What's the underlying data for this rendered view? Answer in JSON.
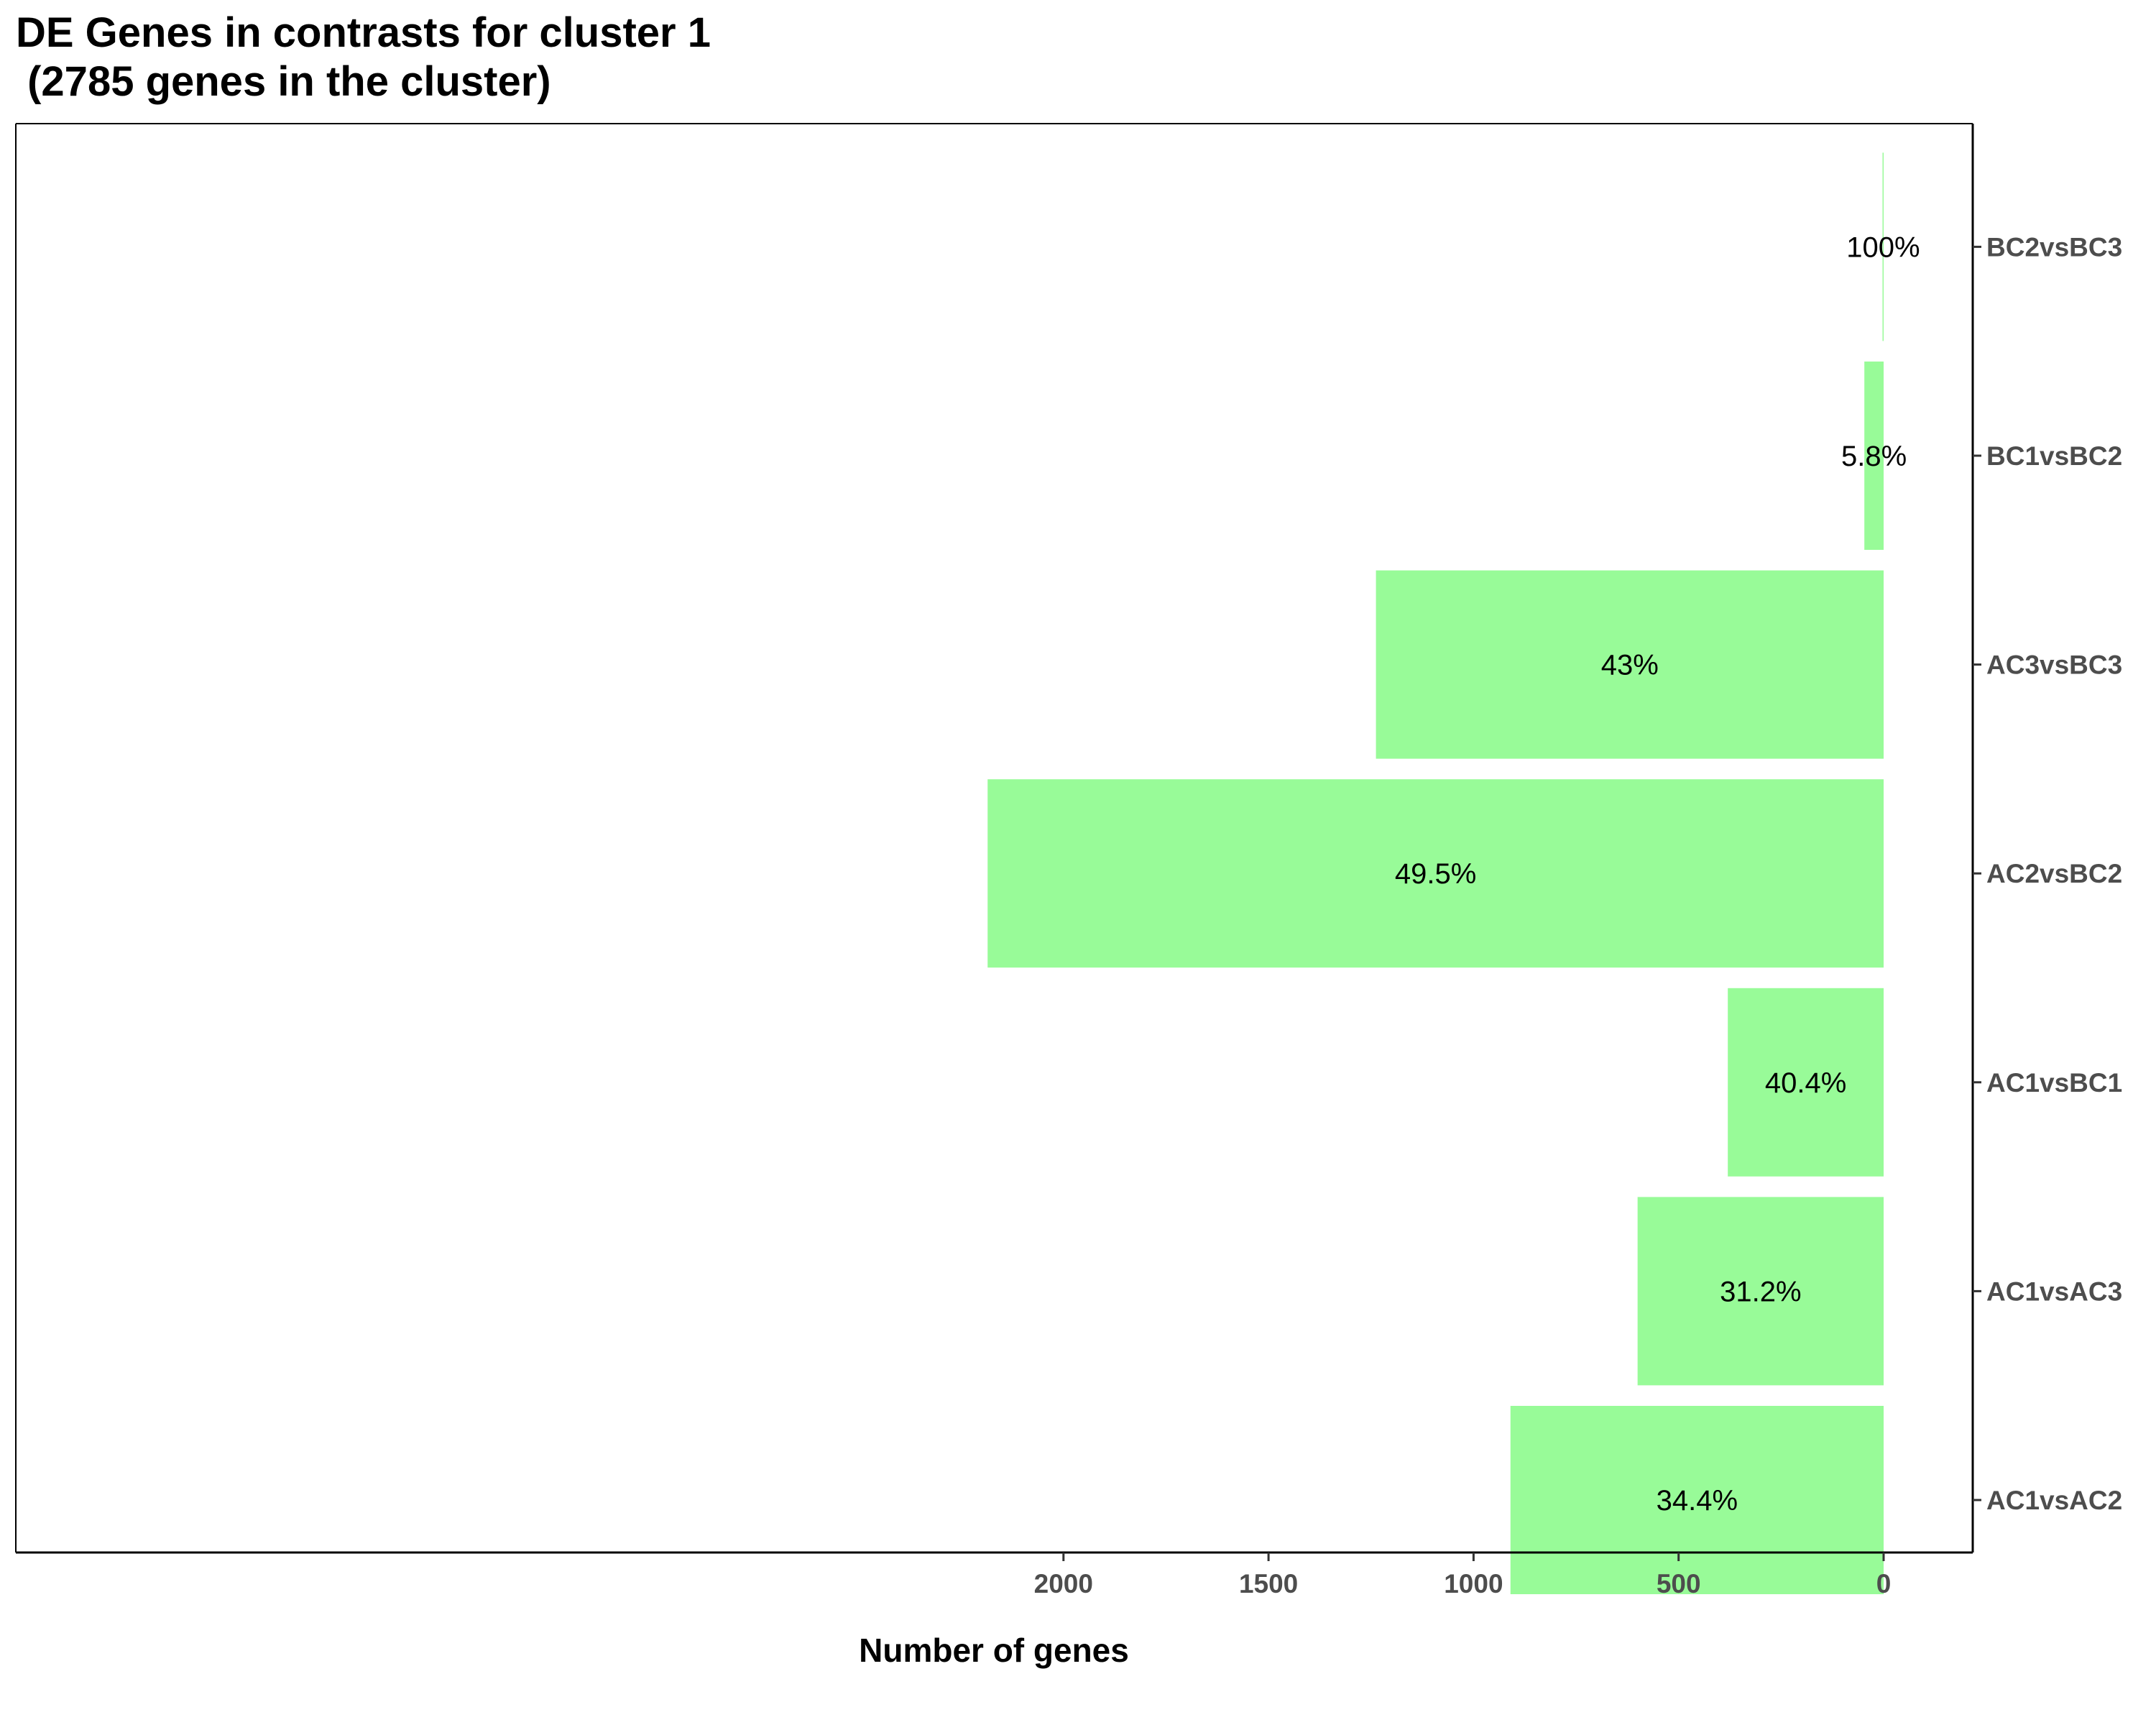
{
  "chart_data": {
    "type": "bar",
    "orientation": "horizontal",
    "x_reversed": true,
    "title_line1": "DE Genes in contrasts for cluster 1",
    "title_line2": " (2785 genes in the cluster)",
    "xlabel": "Number of genes",
    "ylabel": "",
    "xlim": [
      0,
      2250
    ],
    "xticks": [
      2000,
      1500,
      1000,
      500,
      0
    ],
    "categories": [
      "AC1vsAC2",
      "AC1vsAC3",
      "AC1vsBC1",
      "AC2vsBC2",
      "AC3vsBC3",
      "BC1vsBC2",
      "BC2vsBC3"
    ],
    "values": [
      910,
      600,
      380,
      2185,
      1238,
      47,
      2
    ],
    "labels": [
      "34.4%",
      "31.2%",
      "40.4%",
      "49.5%",
      "43%",
      "5.8%",
      "100%"
    ],
    "bar_color": "#98fb98",
    "grid": false,
    "legend": "none"
  }
}
